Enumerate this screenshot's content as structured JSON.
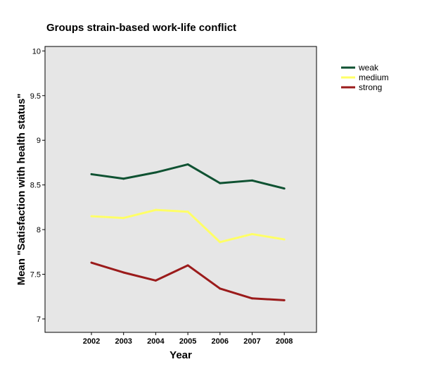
{
  "chart_data": {
    "type": "line",
    "title": "Groups strain-based work-life conflict",
    "xlabel": "Year",
    "ylabel": "Mean \"Satisfaction with health status\"",
    "x": [
      "2002",
      "2003",
      "2004",
      "2005",
      "2006",
      "2007",
      "2008"
    ],
    "ylim": [
      6.85,
      10.05
    ],
    "yticks": [
      "7",
      "7.5",
      "8",
      "8.5",
      "9",
      "9.5",
      "10"
    ],
    "grid": false,
    "legend_position": "top-right-outside",
    "background_color": "#e6e6e6",
    "series": [
      {
        "name": "weak",
        "color": "#0f5232",
        "values": [
          8.62,
          8.57,
          8.64,
          8.73,
          8.52,
          8.55,
          8.46
        ]
      },
      {
        "name": "medium",
        "color": "#ffff66",
        "values": [
          8.15,
          8.13,
          8.22,
          8.2,
          7.86,
          7.95,
          7.89
        ]
      },
      {
        "name": "strong",
        "color": "#9b1b1b",
        "values": [
          7.63,
          7.52,
          7.43,
          7.6,
          7.34,
          7.23,
          7.21
        ]
      }
    ]
  }
}
